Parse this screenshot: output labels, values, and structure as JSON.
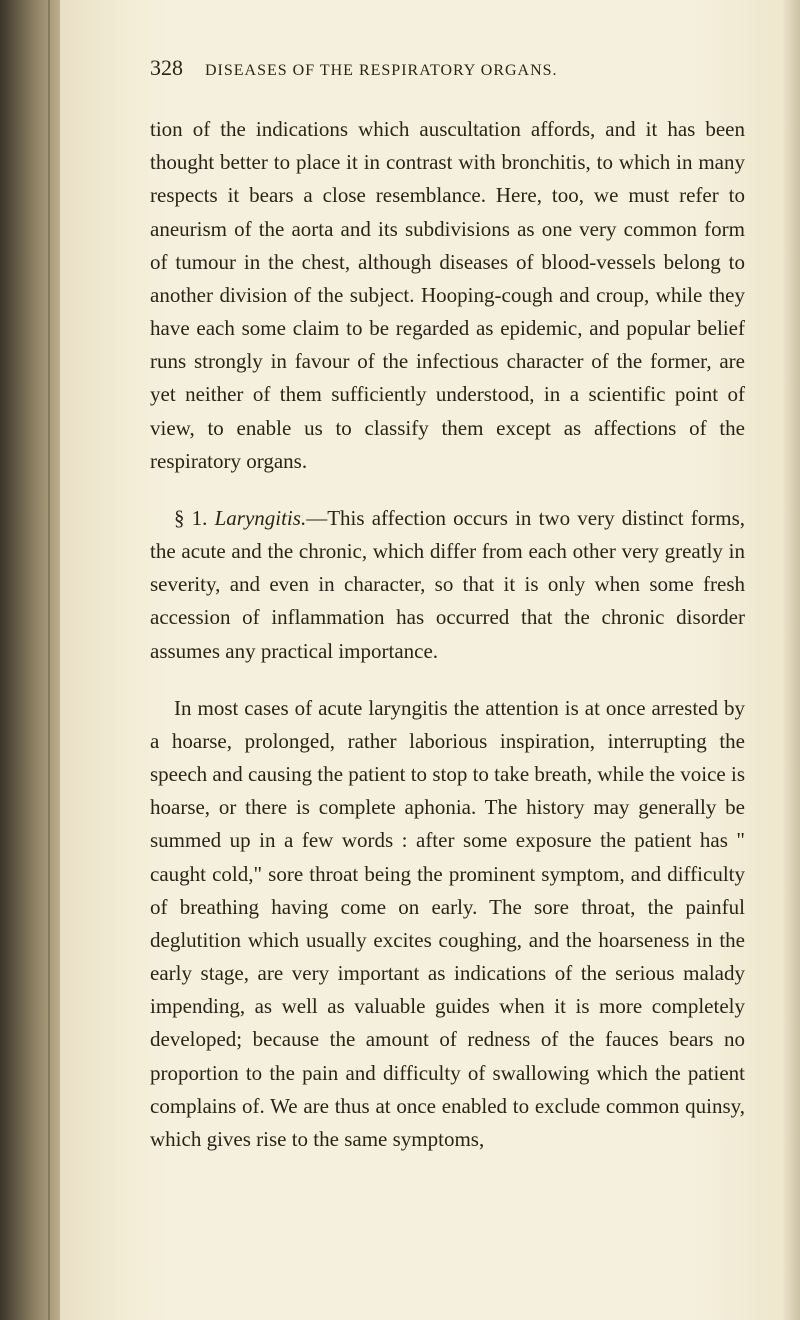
{
  "page": {
    "number": "328",
    "running_header": "DISEASES OF THE RESPIRATORY ORGANS."
  },
  "paragraphs": {
    "p1": "tion of the indications which auscultation affords, and it has been thought better to place it in contrast with bronchitis, to which in many respects it bears a close resemblance. Here, too, we must refer to aneurism of the aorta and its subdivisions as one very common form of tumour in the chest, although diseases of blood-vessels belong to another division of the subject. Hooping-cough and croup, while they have each some claim to be regarded as epidemic, and popular belief runs strongly in favour of the infectious character of the former, are yet neither of them sufficiently understood, in a scientific point of view, to enable us to classify them except as affections of the respiratory organs.",
    "p2_prefix": "§ 1. ",
    "p2_italic": "Laryngitis.",
    "p2_rest": "—This affection occurs in two very distinct forms, the acute and the chronic, which differ from each other very greatly in severity, and even in character, so that it is only when some fresh accession of inflammation has occurred that the chronic disorder assumes any practical importance.",
    "p3": "In most cases of acute laryngitis the attention is at once arrested by a hoarse, prolonged, rather laborious inspiration, interrupting the speech and causing the patient to stop to take breath, while the voice is hoarse, or there is complete aphonia. The history may generally be summed up in a few words : after some exposure the patient has \" caught cold,\" sore throat being the prominent symptom, and difficulty of breathing having come on early. The sore throat, the painful deglutition which usually excites coughing, and the hoarseness in the early stage, are very important as indications of the serious malady impending, as well as valuable guides when it is more completely developed; because the amount of redness of the fauces bears no proportion to the pain and difficulty of swallowing which the patient complains of. We are thus at once enabled to exclude common quinsy, which gives rise to the same symptoms,"
  },
  "styling": {
    "page_bg": "#f5f0de",
    "text_color": "#2a2418",
    "body_fontsize": 21,
    "header_fontsize": 16,
    "pagenum_fontsize": 22,
    "line_height": 1.58,
    "font_family": "Georgia, 'Times New Roman', serif"
  }
}
